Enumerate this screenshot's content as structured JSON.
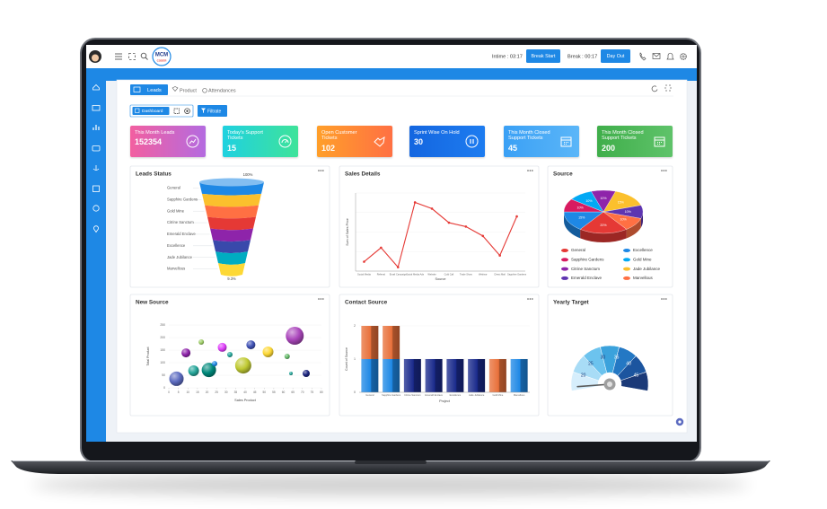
{
  "header": {
    "logo": "MCM",
    "logo_sub": "CODER",
    "intime": "Intime : 03:17",
    "break_start": "Break Start",
    "break_time": "Break : 00:17",
    "day_out": "Day Out"
  },
  "tabs": [
    "Leads",
    "Product",
    "Attendances"
  ],
  "toolbar": {
    "dashboard": "Dashboard",
    "filter": "Filtrate"
  },
  "cards": [
    {
      "title": "This Month Leads",
      "value": 152354
    },
    {
      "title": "Today's Support Tickets",
      "value": 15
    },
    {
      "title": "Open Customer Tickets",
      "value": 102
    },
    {
      "title": "Sprint Wise On Hold",
      "value": 30
    },
    {
      "title": "This Month Closed Support Tickets",
      "value": 45
    },
    {
      "title": "This Month Closed Support Tickets",
      "value": 200
    }
  ],
  "panels": {
    "leads_status": {
      "title": "Leads Status",
      "type": "funnel",
      "top_label": "100%",
      "bottom_label": "9.3%",
      "stages": [
        "General",
        "Sapphire Gardens",
        "Gold Mine",
        "Citrine Sanctum",
        "Emerald Enclave",
        "Excellence",
        "Jade Jubilance",
        "Marvellous"
      ],
      "colors": [
        "#1e88e5",
        "#fbc02d",
        "#ff7043",
        "#e53935",
        "#8e24aa",
        "#3949ab",
        "#00acc1",
        "#fdd835"
      ]
    },
    "sales_details": {
      "title": "Sales Details",
      "type": "line",
      "y_label": "Sum of Sales Price",
      "x_label": "Source",
      "categories": [
        "Social Media",
        "Referral",
        "Email Campaign",
        "Social Media Ads",
        "Website",
        "Cold Call",
        "Trade Show",
        "Webinar",
        "Direct Mail",
        "Sapphire Gardens"
      ],
      "values": [
        12,
        30,
        5,
        88,
        80,
        62,
        57,
        45,
        20,
        70
      ],
      "color": "#e53935",
      "ylim": [
        0,
        100
      ]
    },
    "source": {
      "title": "Source",
      "type": "pie",
      "categories": [
        "General",
        "Excellence",
        "Sapphire Gardens",
        "Gold Mine",
        "Citrine Sanctum",
        "Jade Jubilance",
        "Emerald Enclave",
        "Marvellous"
      ],
      "values": [
        20,
        15,
        10,
        10,
        10,
        15,
        10,
        10
      ],
      "value_labels": [
        "20%",
        "15%",
        "10%",
        "10%",
        "10%",
        "15%",
        "10%",
        "10%"
      ],
      "colors": [
        "#e53935",
        "#1e88e5",
        "#d81b60",
        "#03a9f4",
        "#8e24aa",
        "#fbc02d",
        "#5e35b1",
        "#ff7043"
      ]
    },
    "new_source": {
      "title": "New Source",
      "type": "bubble",
      "x_label": "Sales Product",
      "y_label": "Total Product",
      "x": [
        4,
        9,
        13,
        17,
        21,
        24,
        28,
        32,
        39,
        43,
        52,
        62,
        66,
        64,
        72
      ],
      "y": [
        36,
        139,
        68,
        182,
        71,
        96,
        161,
        132,
        89,
        171,
        143,
        125,
        207,
        57,
        57
      ],
      "size": [
        8,
        5,
        6,
        3,
        8,
        3,
        5,
        3,
        9,
        5,
        6,
        3,
        10,
        2,
        4
      ],
      "colors": [
        "#5c6bc0",
        "#8e24aa",
        "#26a69a",
        "#9ccc65",
        "#00897b",
        "#1e88e5",
        "#e040fb",
        "#26a69a",
        "#c0ca33",
        "#3f51b5",
        "#fdd835",
        "#66bb6a",
        "#ab47bc",
        "#26a69a",
        "#1a237e"
      ],
      "xlim": [
        0,
        80
      ],
      "ylim": [
        0,
        250
      ],
      "xticks": [
        0,
        5,
        10,
        15,
        20,
        25,
        30,
        35,
        40,
        45,
        50,
        55,
        60,
        65,
        70,
        75,
        80
      ],
      "yticks": [
        0,
        50,
        100,
        150,
        200,
        250
      ]
    },
    "contact_source": {
      "title": "Contact Source",
      "type": "bar",
      "y_label": "Count of Source",
      "x_label": "Project",
      "categories": [
        "General",
        "Sapphire Gardens",
        "Citrine Sanctum",
        "Emerald Enclave",
        "Excellence",
        "Jade Jubilance",
        "Gold Mine",
        "Marvellous"
      ],
      "series": [
        {
          "color": "#1e88e5",
          "values": [
            1,
            1,
            0,
            0,
            0,
            0,
            0,
            1
          ]
        },
        {
          "color": "#1a2a8c",
          "values": [
            0,
            0,
            1,
            1,
            1,
            1,
            0,
            0
          ]
        },
        {
          "color": "#e8703a",
          "values": [
            1,
            1,
            0,
            0,
            0,
            0,
            1,
            0
          ]
        }
      ],
      "ylim": [
        0,
        2
      ],
      "yticks": [
        0,
        1,
        2
      ]
    },
    "yearly_target": {
      "title": "Yearly Target",
      "type": "gauge",
      "lim": [
        15,
        50
      ],
      "ticks": [
        20,
        25,
        30,
        35,
        40,
        45
      ],
      "value": 16,
      "band_colors": [
        "#d6eefc",
        "#a8dcf6",
        "#6cc3ee",
        "#3ba2dc",
        "#2478c4",
        "#1c559f",
        "#1b3a78"
      ]
    }
  }
}
